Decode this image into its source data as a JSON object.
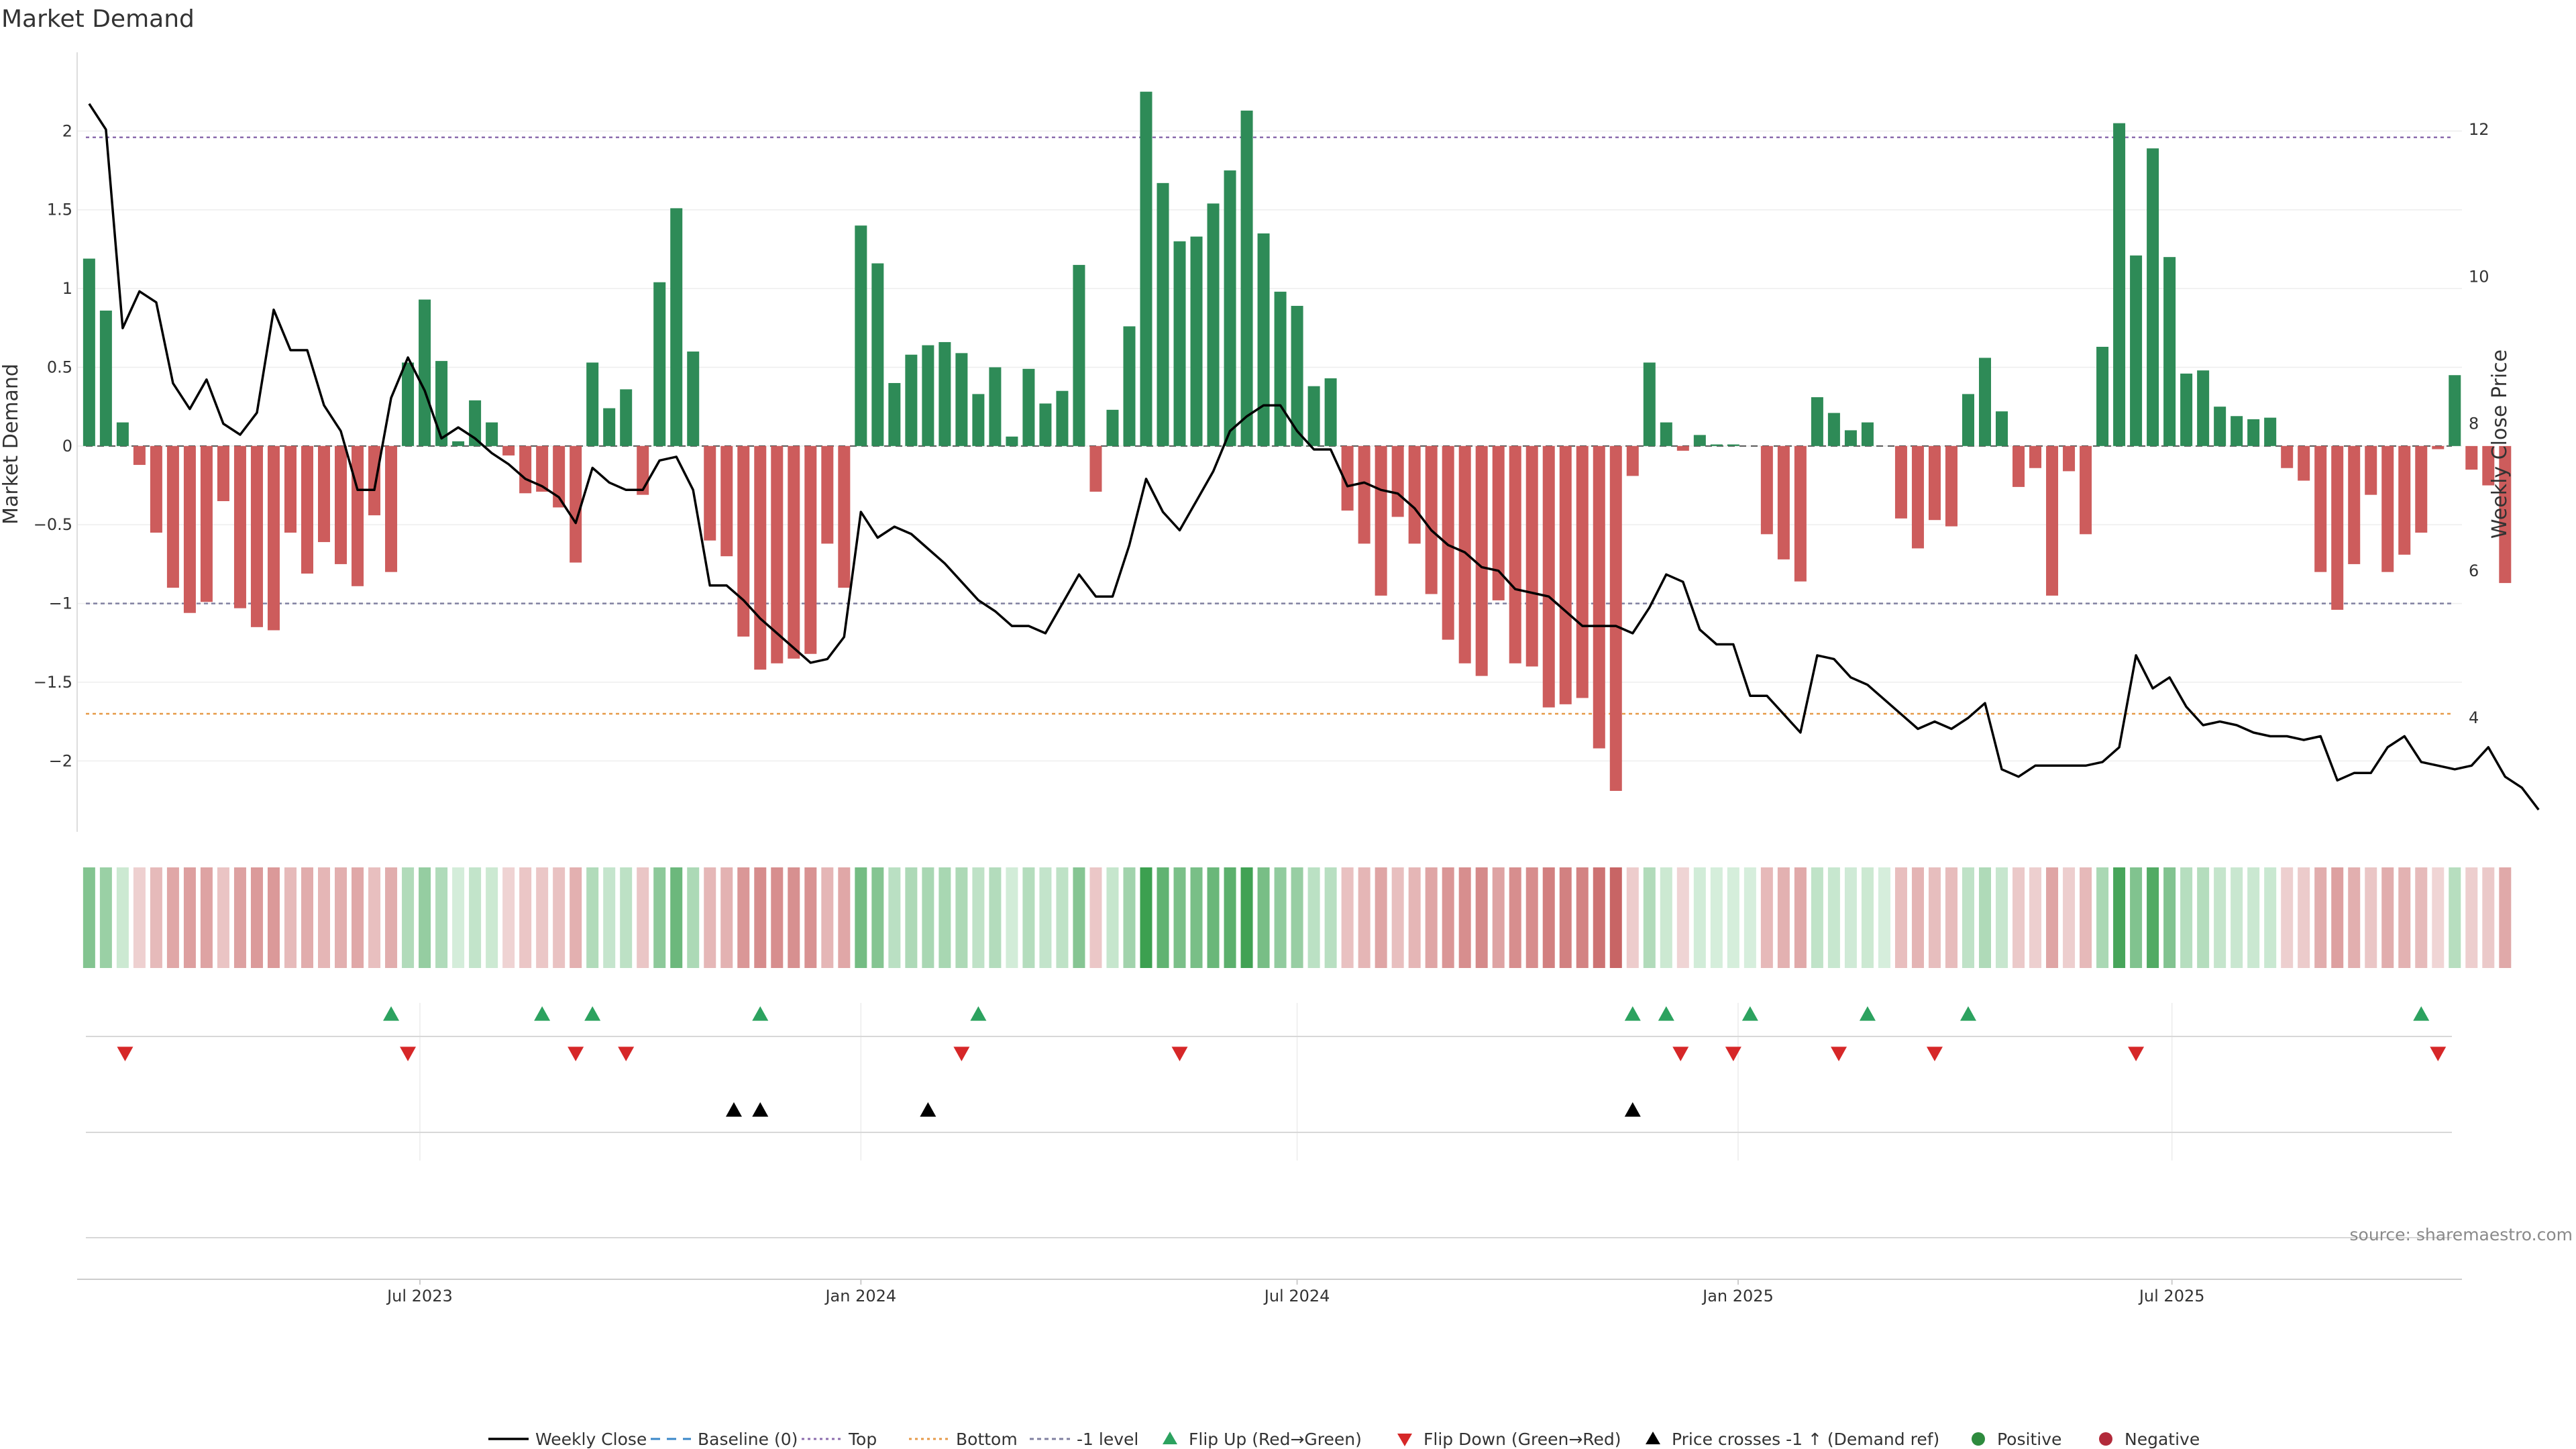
{
  "chart_data": {
    "type": "bar",
    "title": "Market Demand",
    "ylabel": "Market Demand",
    "y2label": "Weekly Close Price",
    "ylim": [
      -2.45,
      2.5
    ],
    "y2lim": [
      2.45,
      13.05
    ],
    "y_ticks": [
      2,
      1.5,
      1,
      0.5,
      0,
      -0.5,
      -1,
      -1.5,
      -2
    ],
    "y_tick_labels": [
      "2",
      "1.5",
      "1",
      "0.5",
      "0",
      "−0.5",
      "−1",
      "−1.5",
      "−2"
    ],
    "y2_ticks": [
      12,
      10,
      8,
      6,
      4
    ],
    "y2_tick_labels": [
      "12",
      "10",
      "8",
      "6",
      "4"
    ],
    "x_ticks": [
      "2023-07-01",
      "2024-01-01",
      "2024-07-01",
      "2025-01-01",
      "2025-07-01"
    ],
    "x_tick_labels": [
      "Jul 2023",
      "Jan 2024",
      "Jul 2024",
      "Jan 2025",
      "Jul 2025"
    ],
    "x_range": [
      "2023-02-08",
      "2025-10-30"
    ],
    "first_week": "2023-02-13",
    "demand": [
      1.19,
      0.86,
      0.15,
      -0.12,
      -0.55,
      -0.9,
      -1.06,
      -0.99,
      -0.35,
      -1.03,
      -1.15,
      -1.17,
      -0.55,
      -0.81,
      -0.61,
      -0.75,
      -0.89,
      -0.44,
      -0.8,
      0.53,
      0.93,
      0.54,
      0.03,
      0.29,
      0.15,
      -0.06,
      -0.3,
      -0.29,
      -0.39,
      -0.74,
      0.53,
      0.24,
      0.36,
      -0.31,
      1.04,
      1.51,
      0.6,
      -0.6,
      -0.7,
      -1.21,
      -1.42,
      -1.38,
      -1.35,
      -1.32,
      -0.62,
      -0.9,
      1.4,
      1.16,
      0.4,
      0.58,
      0.64,
      0.66,
      0.59,
      0.33,
      0.5,
      0.06,
      0.49,
      0.27,
      0.35,
      1.15,
      -0.29,
      0.23,
      0.76,
      2.25,
      1.67,
      1.3,
      1.33,
      1.54,
      1.75,
      2.13,
      1.35,
      0.98,
      0.89,
      0.38,
      0.43,
      -0.41,
      -0.62,
      -0.95,
      -0.45,
      -0.62,
      -0.94,
      -1.23,
      -1.38,
      -1.46,
      -0.98,
      -1.38,
      -1.4,
      -1.66,
      -1.64,
      -1.6,
      -1.92,
      -2.19,
      -0.19,
      0.53,
      0.15,
      -0.03,
      0.07,
      0.01,
      0.01,
      0.0,
      -0.56,
      -0.72,
      -0.86,
      0.31,
      0.21,
      0.1,
      0.15,
      0.0,
      -0.46,
      -0.65,
      -0.47,
      -0.51,
      0.33,
      0.56,
      0.22,
      -0.26,
      -0.14,
      -0.95,
      -0.16,
      -0.56,
      0.63,
      2.05,
      1.21,
      1.89,
      1.2,
      0.46,
      0.48,
      0.25,
      0.19,
      0.17,
      0.18,
      -0.14,
      -0.22,
      -0.8,
      -1.04,
      -0.75,
      -0.31,
      -0.8,
      -0.69,
      -0.55,
      -0.02,
      0.45,
      -0.15,
      -0.25,
      -0.87
    ],
    "close": [
      12.35,
      12.0,
      9.3,
      9.8,
      9.65,
      8.55,
      8.2,
      8.6,
      8.0,
      7.85,
      8.15,
      9.55,
      9.0,
      9.0,
      8.25,
      7.9,
      7.1,
      7.1,
      8.35,
      8.9,
      8.45,
      7.8,
      7.95,
      7.8,
      7.6,
      7.45,
      7.25,
      7.15,
      7.0,
      6.65,
      7.4,
      7.2,
      7.1,
      7.1,
      7.5,
      7.55,
      7.1,
      5.8,
      5.8,
      5.6,
      5.35,
      5.15,
      4.95,
      4.75,
      4.8,
      5.1,
      6.8,
      6.45,
      6.6,
      6.5,
      6.3,
      6.1,
      5.85,
      5.6,
      5.45,
      5.25,
      5.25,
      5.15,
      5.55,
      5.95,
      5.65,
      5.65,
      6.35,
      7.25,
      6.8,
      6.55,
      6.95,
      7.35,
      7.9,
      8.1,
      8.25,
      8.25,
      7.9,
      7.65,
      7.65,
      7.15,
      7.2,
      7.1,
      7.05,
      6.85,
      6.55,
      6.35,
      6.25,
      6.05,
      6.0,
      5.75,
      5.7,
      5.65,
      5.45,
      5.25,
      5.25,
      5.25,
      5.15,
      5.5,
      5.95,
      5.85,
      5.2,
      5.0,
      5.0,
      4.3,
      4.3,
      4.05,
      3.8,
      4.85,
      4.8,
      4.55,
      4.45,
      4.25,
      4.05,
      3.85,
      3.95,
      3.85,
      4.0,
      4.2,
      3.3,
      3.2,
      3.35,
      3.35,
      3.35,
      3.35,
      3.4,
      3.6,
      4.85,
      4.4,
      4.55,
      4.15,
      3.9,
      3.95,
      3.9,
      3.8,
      3.75,
      3.75,
      3.7,
      3.75,
      3.15,
      3.25,
      3.25,
      3.6,
      3.75,
      3.4,
      3.35,
      3.3,
      3.35,
      3.6,
      3.2,
      3.05,
      2.75
    ],
    "top_level": 1.96,
    "bottom_level": -1.7,
    "minus_one_level": -1.0,
    "baseline": 0,
    "flip_up_dates": [
      "2023-06-19",
      "2023-08-21",
      "2023-09-11",
      "2023-11-20",
      "2024-02-19",
      "2024-11-18",
      "2024-12-02",
      "2025-01-06",
      "2025-02-24",
      "2025-04-07",
      "2025-10-13"
    ],
    "flip_down_dates": [
      "2023-02-28",
      "2023-06-26",
      "2023-09-04",
      "2023-09-25",
      "2024-02-12",
      "2024-05-13",
      "2024-12-08",
      "2024-12-30",
      "2025-02-12",
      "2025-03-24",
      "2025-06-16",
      "2025-10-20"
    ],
    "price_cross_dates": [
      "2023-11-09",
      "2023-11-20",
      "2024-01-29",
      "2024-11-18"
    ],
    "colors": {
      "positive": "#2e8b57",
      "negative": "#cd5c5c",
      "close": "#000000",
      "top": "#8c6dae",
      "bottom": "#e69a48",
      "minus_one": "#8080a0",
      "baseline": "#3a87c8",
      "flip_up": "#2ca25f",
      "flip_down": "#d62728",
      "price_cross": "#000000",
      "legend_positive": "#2e8b3e",
      "legend_negative": "#b22a3a"
    },
    "legend_position": "bottom",
    "legend": [
      {
        "label": "Weekly Close",
        "kind": "line"
      },
      {
        "label": "Baseline (0)",
        "kind": "dash-baseline"
      },
      {
        "label": "Top",
        "kind": "dot-top"
      },
      {
        "label": "Bottom",
        "kind": "dot-bottom"
      },
      {
        "label": "-1 level",
        "kind": "dot-minus"
      },
      {
        "label": "Flip Up (Red→Green)",
        "kind": "tri-up-green"
      },
      {
        "label": "Flip Down (Green→Red)",
        "kind": "tri-down-red"
      },
      {
        "label": "Price crosses -1 ↑ (Demand ref)",
        "kind": "tri-up-black"
      },
      {
        "label": "Positive",
        "kind": "dot-green"
      },
      {
        "label": "Negative",
        "kind": "dot-red"
      }
    ],
    "source": "source: sharemaestro.com"
  }
}
